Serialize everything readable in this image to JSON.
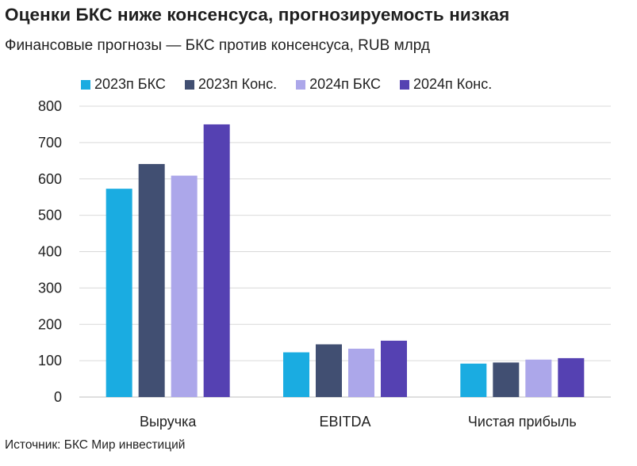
{
  "title": "Оценки БКС ниже консенсуса, прогнозируемость низкая",
  "subtitle": "Финансовые прогнозы — БКС против консенсуса, RUB млрд",
  "source": "Источник: БКС Мир инвестиций",
  "colors": {
    "bks_2023": "#1aace1",
    "cons_2023": "#414f72",
    "bks_2024": "#aca7ea",
    "cons_2024": "#5541b2",
    "grid": "#d9d9d9",
    "axis": "#bfbfbf"
  },
  "chart_data": {
    "type": "bar",
    "categories": [
      "Выручка",
      "EBITDA",
      "Чистая прибыль"
    ],
    "series": [
      {
        "name": "2023п БКС",
        "color": "#1aace1",
        "values": [
          573,
          123,
          92
        ]
      },
      {
        "name": "2023п Конс.",
        "color": "#414f72",
        "values": [
          641,
          145,
          95
        ]
      },
      {
        "name": "2024п БКС",
        "color": "#aca7ea",
        "values": [
          609,
          133,
          103
        ]
      },
      {
        "name": "2024п Конс.",
        "color": "#5541b2",
        "values": [
          750,
          155,
          107
        ]
      }
    ],
    "ylim": [
      0,
      800
    ],
    "yticks": [
      "0",
      "100",
      "200",
      "300",
      "400",
      "500",
      "600",
      "700",
      "800"
    ],
    "grid": true,
    "legend": "top"
  }
}
